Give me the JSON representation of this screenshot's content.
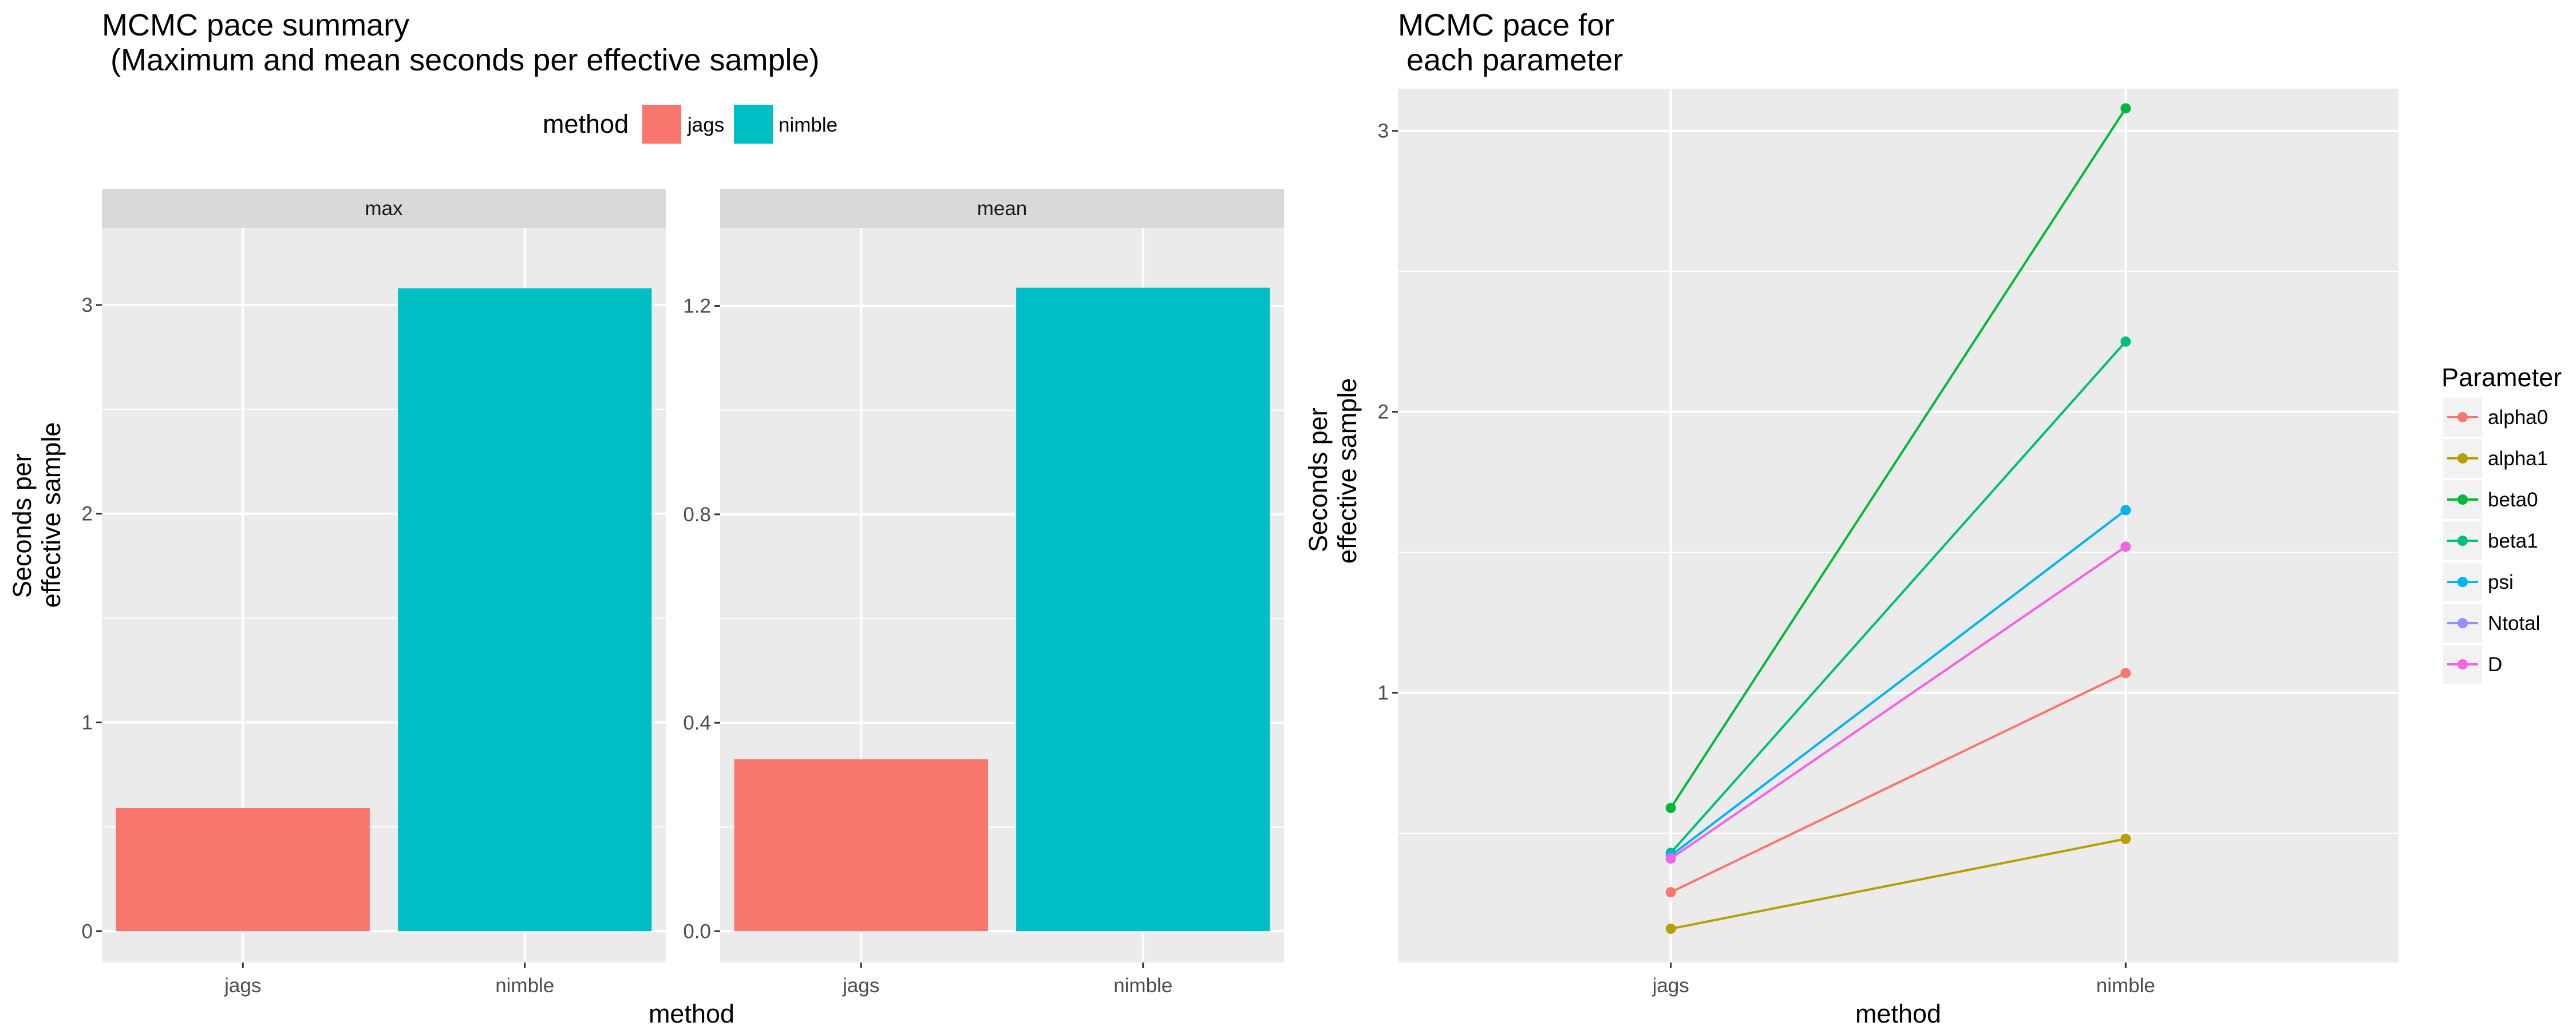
{
  "chart_data": [
    {
      "type": "bar",
      "title_line1": "MCMC pace summary",
      "title_line2": " (Maximum and mean seconds per effective sample)",
      "xlabel": "method",
      "ylabel_line1": "Seconds per",
      "ylabel_line2": "effective sample",
      "categories": [
        "jags",
        "nimble"
      ],
      "colors": {
        "jags": "#F8766D",
        "nimble": "#00BFC4"
      },
      "legend": {
        "title": "method",
        "placement": "top",
        "entries": [
          "jags",
          "nimble"
        ]
      },
      "grid": true,
      "facets": [
        {
          "label": "max",
          "ylim": [
            -0.15,
            3.37
          ],
          "yticks": [
            0,
            1,
            2,
            3
          ],
          "ytick_labels": [
            "0",
            "1",
            "2",
            "3"
          ],
          "values": [
            0.59,
            3.08
          ]
        },
        {
          "label": "mean",
          "ylim": [
            -0.06,
            1.35
          ],
          "yticks": [
            0.0,
            0.4,
            0.8,
            1.2
          ],
          "ytick_labels": [
            "0.0",
            "0.4",
            "0.8",
            "1.2"
          ],
          "values": [
            0.33,
            1.235
          ]
        }
      ]
    },
    {
      "type": "line",
      "title_line1": "MCMC pace for",
      "title_line2": " each parameter",
      "xlabel": "method",
      "ylabel_line1": "Seconds per",
      "ylabel_line2": "effective sample",
      "x": [
        "jags",
        "nimble"
      ],
      "ylim": [
        0.04,
        3.15
      ],
      "yticks": [
        1,
        2,
        3
      ],
      "ytick_labels": [
        "1",
        "2",
        "3"
      ],
      "grid": true,
      "legend": {
        "title": "Parameter",
        "placement": "right"
      },
      "series": [
        {
          "name": "alpha0",
          "color": "#F8766D",
          "values": [
            0.29,
            1.07
          ]
        },
        {
          "name": "alpha1",
          "color": "#B79F00",
          "values": [
            0.16,
            0.48
          ]
        },
        {
          "name": "beta0",
          "color": "#00BA38",
          "values": [
            0.59,
            3.08
          ]
        },
        {
          "name": "beta1",
          "color": "#00BF7D",
          "values": [
            0.43,
            2.25
          ]
        },
        {
          "name": "psi",
          "color": "#00B4F0",
          "values": [
            0.42,
            1.65
          ]
        },
        {
          "name": "Ntotal",
          "color": "#9590FF",
          "values": [
            0.41,
            1.52
          ]
        },
        {
          "name": "D",
          "color": "#F564E3",
          "values": [
            0.41,
            1.52
          ]
        }
      ]
    }
  ]
}
